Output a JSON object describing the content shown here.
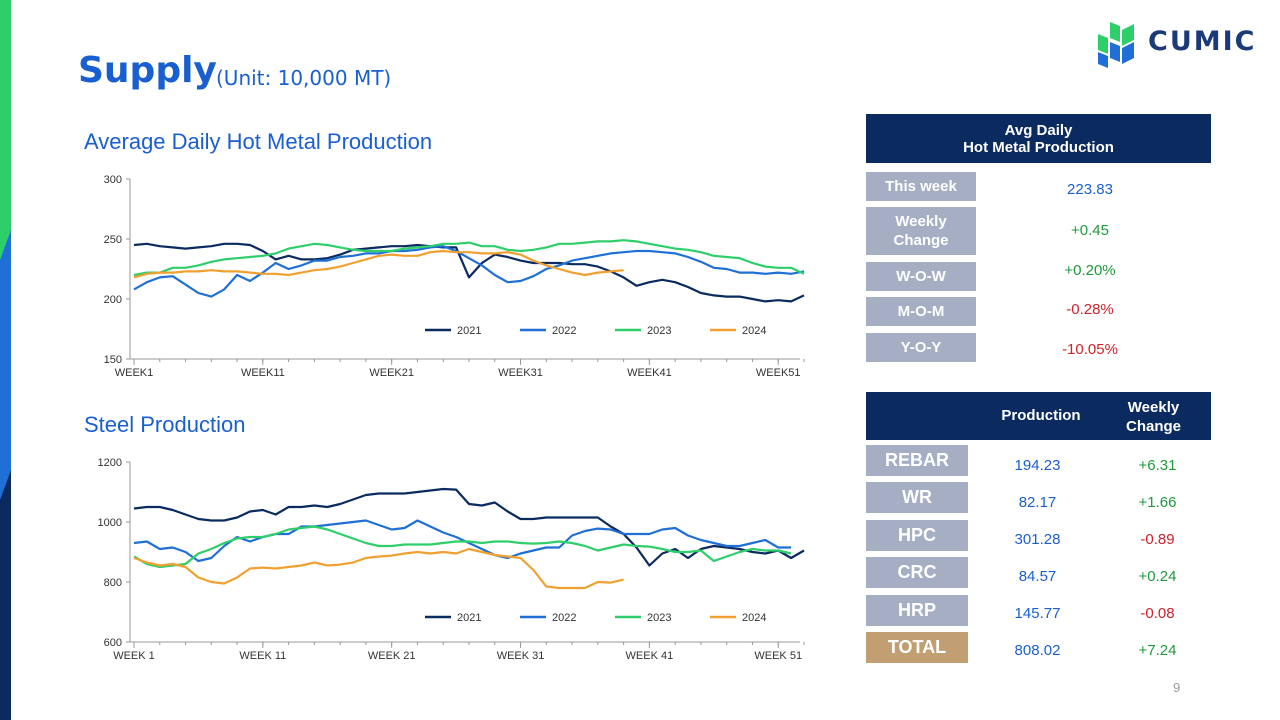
{
  "header": {
    "title": "Supply",
    "subtitle": "(Unit: 10,000 MT)"
  },
  "logo": {
    "text": "CUMIC"
  },
  "page_number": "9",
  "chart_titles": [
    "Average Daily Hot Metal Production",
    "Steel Production"
  ],
  "hot_metal_table": {
    "header_line1": "Avg Daily",
    "header_line2": "Hot Metal Production",
    "rows": [
      {
        "label": "This week",
        "value": "223.83",
        "color": "blue"
      },
      {
        "label": "Weekly\nChange",
        "value": "+0.45",
        "color": "green"
      },
      {
        "label": "W-O-W",
        "value": "+0.20%",
        "color": "green"
      },
      {
        "label": "M-O-M",
        "value": "-0.28%",
        "color": "red"
      },
      {
        "label": "Y-O-Y",
        "value": "-10.05%",
        "color": "red"
      }
    ]
  },
  "steel_table": {
    "col_production": "Production",
    "col_change_line1": "Weekly",
    "col_change_line2": "Change",
    "rows": [
      {
        "label": "REBAR",
        "production": "194.23",
        "change": "+6.31",
        "change_color": "green"
      },
      {
        "label": "WR",
        "production": "82.17",
        "change": "+1.66",
        "change_color": "green"
      },
      {
        "label": "HPC",
        "production": "301.28",
        "change": "-0.89",
        "change_color": "red"
      },
      {
        "label": "CRC",
        "production": "84.57",
        "change": "+0.24",
        "change_color": "green"
      },
      {
        "label": "HRP",
        "production": "145.77",
        "change": "-0.08",
        "change_color": "red"
      },
      {
        "label": "TOTAL",
        "production": "808.02",
        "change": "+7.24",
        "change_color": "green"
      }
    ]
  },
  "colors": {
    "s2021": "#0b2a5f",
    "s2022": "#1f6fd6",
    "s2023": "#2ecf6a",
    "s2024": "#f0a030",
    "blue": "#1a5fd0",
    "green": "#1e9a3c",
    "red": "#d0202a"
  },
  "chart_data": [
    {
      "type": "line",
      "title": "Average Daily Hot Metal Production",
      "xlabel": "",
      "ylabel": "",
      "x_ticks": [
        "WEEK1",
        "WEEK11",
        "WEEK21",
        "WEEK31",
        "WEEK41",
        "WEEK51"
      ],
      "y_ticks": [
        150,
        200,
        250,
        300
      ],
      "ylim": [
        150,
        300
      ],
      "xlim": [
        1,
        53
      ],
      "legend": "bottom-right",
      "series": [
        {
          "name": "2021",
          "color": "#0b2a5f",
          "values": [
            245,
            246,
            244,
            243,
            242,
            243,
            244,
            246,
            246,
            245,
            240,
            233,
            236,
            233,
            233,
            234,
            237,
            241,
            242,
            243,
            244,
            244,
            245,
            244,
            243,
            243,
            218,
            230,
            237,
            235,
            232,
            230,
            230,
            230,
            229,
            229,
            227,
            223,
            218,
            211,
            214,
            216,
            214,
            210,
            205,
            203,
            202,
            202,
            200,
            198,
            199,
            198,
            203
          ]
        },
        {
          "name": "2022",
          "color": "#1f6fd6",
          "values": [
            208,
            214,
            218,
            219,
            212,
            205,
            202,
            208,
            220,
            215,
            222,
            230,
            225,
            228,
            232,
            232,
            235,
            236,
            238,
            238,
            240,
            240,
            241,
            243,
            244,
            240,
            234,
            228,
            220,
            214,
            215,
            219,
            225,
            228,
            232,
            234,
            236,
            238,
            239,
            240,
            240,
            239,
            238,
            235,
            231,
            226,
            225,
            222,
            222,
            221,
            222,
            221,
            223
          ]
        },
        {
          "name": "2023",
          "color": "#2ecf6a",
          "values": [
            220,
            222,
            222,
            226,
            226,
            228,
            231,
            233,
            234,
            235,
            236,
            238,
            242,
            244,
            246,
            245,
            243,
            241,
            240,
            240,
            240,
            242,
            243,
            244,
            246,
            246,
            247,
            244,
            244,
            241,
            240,
            241,
            243,
            246,
            246,
            247,
            248,
            248,
            249,
            248,
            246,
            244,
            242,
            241,
            239,
            236,
            235,
            234,
            230,
            227,
            226,
            226,
            221
          ]
        },
        {
          "name": "2024",
          "color": "#f0a030",
          "values": [
            218,
            221,
            222,
            222,
            223,
            223,
            224,
            223,
            223,
            222,
            221,
            221,
            220,
            222,
            224,
            225,
            227,
            230,
            233,
            236,
            237,
            236,
            236,
            239,
            240,
            239,
            239,
            238,
            238,
            239,
            237,
            232,
            228,
            225,
            222,
            220,
            222,
            223,
            224
          ]
        }
      ]
    },
    {
      "type": "line",
      "title": "Steel Production",
      "xlabel": "",
      "ylabel": "",
      "x_ticks": [
        "WEEK 1",
        "WEEK 11",
        "WEEK 21",
        "WEEK 31",
        "WEEK 41",
        "WEEK 51"
      ],
      "y_ticks": [
        600,
        800,
        1000,
        1200
      ],
      "ylim": [
        600,
        1200
      ],
      "xlim": [
        1,
        53
      ],
      "legend": "bottom-right",
      "series": [
        {
          "name": "2021",
          "color": "#0b2a5f",
          "values": [
            1045,
            1050,
            1050,
            1040,
            1025,
            1010,
            1005,
            1005,
            1015,
            1035,
            1040,
            1025,
            1050,
            1050,
            1055,
            1050,
            1060,
            1075,
            1090,
            1095,
            1095,
            1095,
            1100,
            1105,
            1110,
            1108,
            1060,
            1055,
            1065,
            1035,
            1010,
            1010,
            1015,
            1015,
            1015,
            1015,
            1015,
            985,
            960,
            915,
            855,
            895,
            910,
            880,
            910,
            920,
            915,
            910,
            900,
            895,
            905,
            880,
            905
          ]
        },
        {
          "name": "2022",
          "color": "#1f6fd6",
          "values": [
            930,
            935,
            910,
            915,
            900,
            870,
            880,
            920,
            950,
            935,
            950,
            960,
            960,
            985,
            985,
            990,
            995,
            1000,
            1005,
            990,
            975,
            980,
            1005,
            985,
            965,
            950,
            930,
            910,
            890,
            880,
            895,
            905,
            915,
            915,
            955,
            970,
            978,
            975,
            960,
            960,
            960,
            975,
            980,
            955,
            940,
            930,
            920,
            920,
            930,
            940,
            915,
            915
          ]
        },
        {
          "name": "2023",
          "color": "#2ecf6a",
          "values": [
            885,
            860,
            850,
            855,
            860,
            895,
            910,
            930,
            945,
            950,
            950,
            960,
            975,
            980,
            985,
            975,
            960,
            945,
            930,
            920,
            920,
            925,
            925,
            925,
            930,
            935,
            935,
            930,
            935,
            935,
            930,
            928,
            930,
            935,
            930,
            920,
            905,
            915,
            925,
            920,
            918,
            910,
            900,
            900,
            905,
            870,
            885,
            900,
            910,
            905,
            905,
            895
          ]
        },
        {
          "name": "2024",
          "color": "#f0a030",
          "values": [
            880,
            865,
            855,
            860,
            850,
            815,
            800,
            795,
            815,
            845,
            848,
            845,
            850,
            855,
            865,
            855,
            858,
            865,
            880,
            885,
            888,
            895,
            900,
            895,
            900,
            895,
            910,
            900,
            890,
            885,
            880,
            840,
            785,
            780,
            780,
            780,
            800,
            798,
            808
          ]
        }
      ]
    }
  ]
}
